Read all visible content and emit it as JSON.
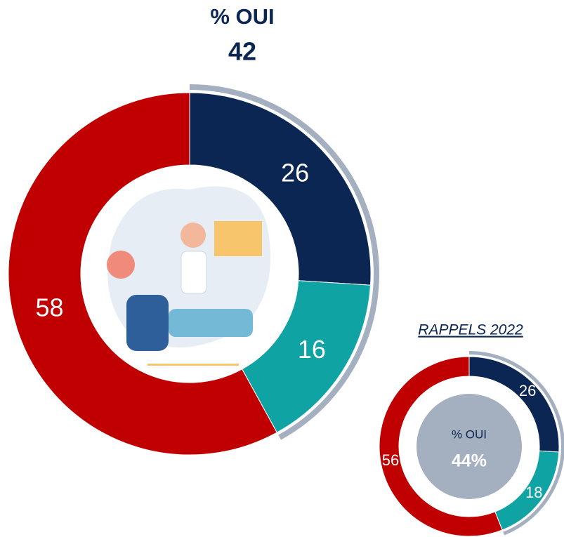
{
  "chart_data": [
    {
      "type": "donut",
      "title": "% OUI",
      "highlight": 42,
      "categories": [
        null,
        null,
        null
      ],
      "values": [
        26,
        16,
        58
      ],
      "colors": [
        "#0b2653",
        "#0fa3a3",
        "#c00000"
      ],
      "highlight_color": "#a4afc0"
    },
    {
      "type": "donut",
      "title": "RAPPELS 2022",
      "center_label": "% OUI",
      "highlight": {
        "value": 44,
        "label": "44%"
      },
      "categories": [
        null,
        null,
        null
      ],
      "values": [
        26,
        18,
        56
      ],
      "colors": [
        "#0b2653",
        "#0fa3a3",
        "#c00000"
      ],
      "highlight_color": "#a4afc0"
    }
  ]
}
